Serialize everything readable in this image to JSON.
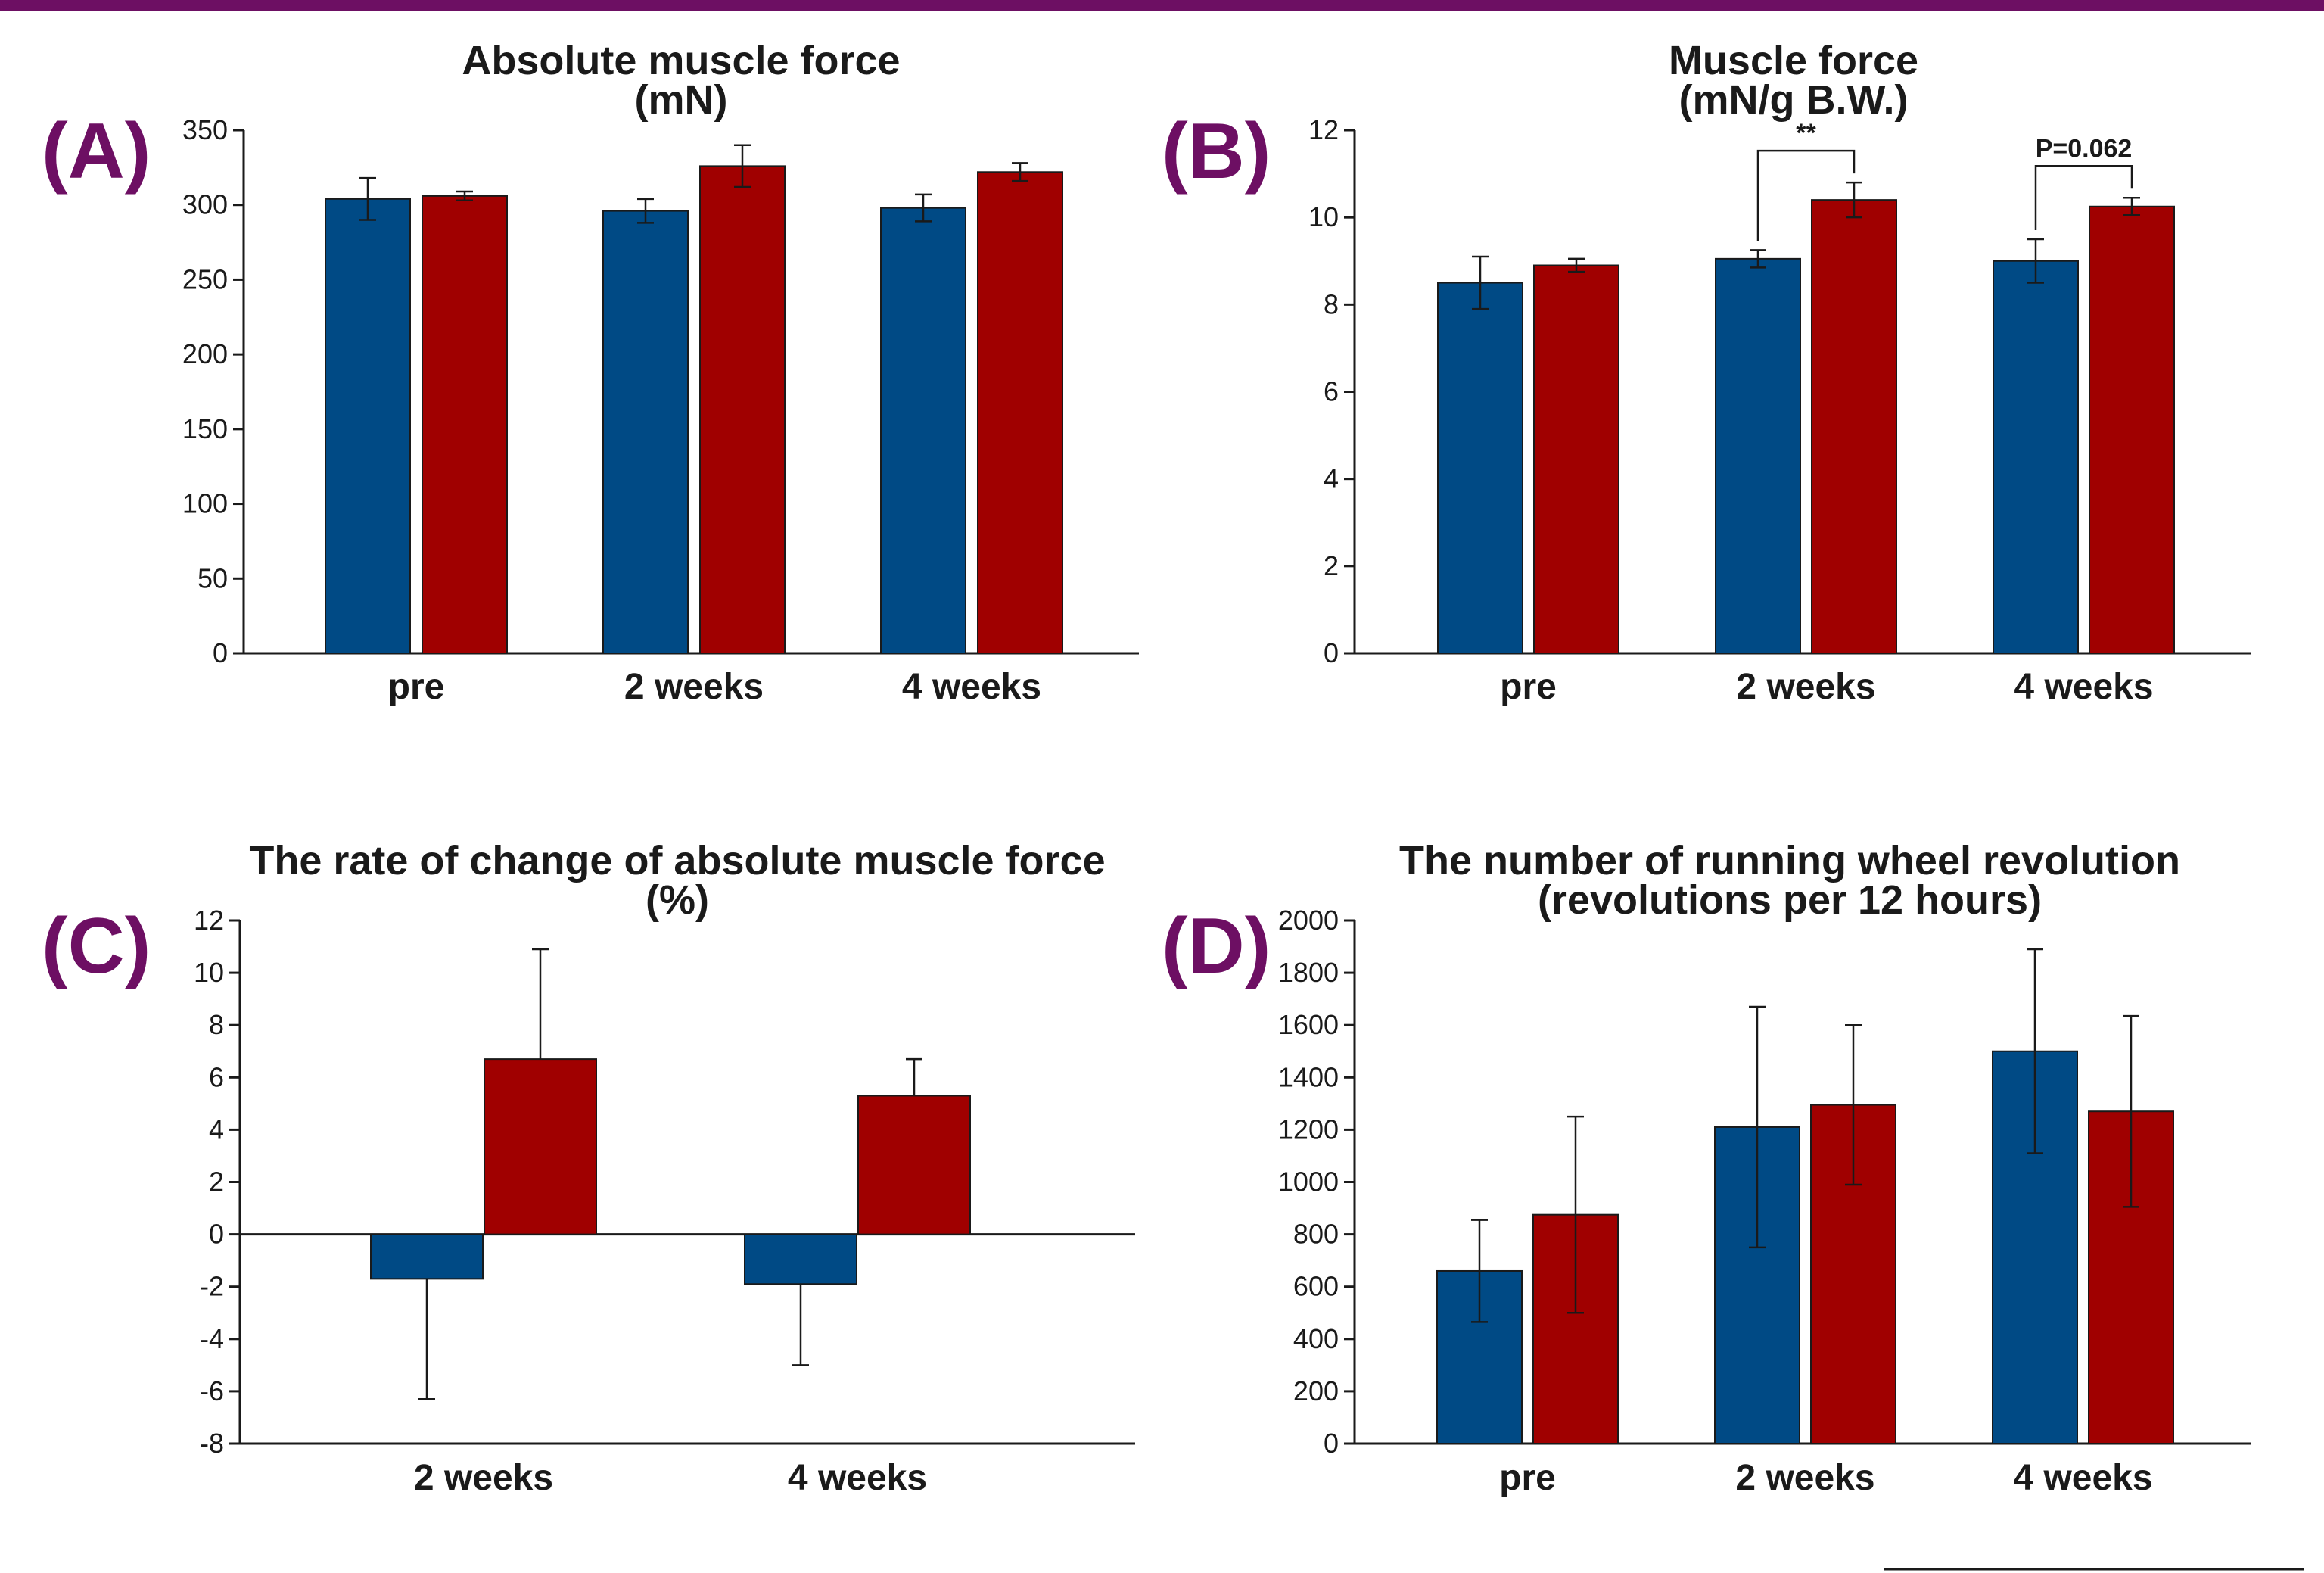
{
  "colors": {
    "series_blue": "#004a85",
    "series_red": "#a00000",
    "accent": "#6d0f63"
  },
  "chart_data": [
    {
      "panel": "(A)",
      "type": "bar",
      "title": "Absolute muscle force",
      "subtitle": "(mN)",
      "categories": [
        "pre",
        "2 weeks",
        "4 weeks"
      ],
      "ylim": [
        0,
        350
      ],
      "yticks": [
        "0",
        "50",
        "100",
        "150",
        "200",
        "250",
        "300",
        "350"
      ],
      "series": [
        {
          "values": [
            304,
            296,
            298
          ],
          "errors": [
            14,
            8,
            9
          ],
          "color": "#004a85"
        },
        {
          "values": [
            306,
            326,
            322
          ],
          "errors": [
            3,
            14,
            6
          ],
          "color": "#a00000"
        }
      ],
      "annotations": []
    },
    {
      "panel": "(B)",
      "type": "bar",
      "title": "Muscle force",
      "subtitle": "(mN/g B.W.)",
      "categories": [
        "pre",
        "2 weeks",
        "4 weeks"
      ],
      "ylim": [
        0,
        12
      ],
      "yticks": [
        "0",
        "2",
        "4",
        "6",
        "8",
        "10",
        "12"
      ],
      "series": [
        {
          "values": [
            8.5,
            9.05,
            9.0
          ],
          "errors": [
            0.6,
            0.2,
            0.5
          ],
          "color": "#004a85"
        },
        {
          "values": [
            8.9,
            10.4,
            10.25
          ],
          "errors": [
            0.15,
            0.4,
            0.2
          ],
          "color": "#a00000"
        }
      ],
      "annotations": [
        {
          "category": "2 weeks",
          "text": "**"
        },
        {
          "category": "4 weeks",
          "text": "P=0.062"
        }
      ]
    },
    {
      "panel": "(C)",
      "type": "bar",
      "title": "The rate of change of absolute muscle force",
      "subtitle": "(%)",
      "categories": [
        "2 weeks",
        "4 weeks"
      ],
      "ylim": [
        -8,
        12
      ],
      "yticks": [
        "-8",
        "-6",
        "-4",
        "-2",
        "0",
        "2",
        "4",
        "6",
        "8",
        "10",
        "12"
      ],
      "series": [
        {
          "values": [
            -1.7,
            -1.9
          ],
          "errors": [
            4.6,
            3.1
          ],
          "color": "#004a85"
        },
        {
          "values": [
            6.7,
            5.3
          ],
          "errors": [
            4.2,
            1.4
          ],
          "color": "#a00000"
        }
      ],
      "annotations": []
    },
    {
      "panel": "(D)",
      "type": "bar",
      "title": "The number of running wheel revolution",
      "subtitle": "(revolutions per 12 hours)",
      "categories": [
        "pre",
        "2 weeks",
        "4 weeks"
      ],
      "ylim": [
        0,
        2000
      ],
      "yticks": [
        "0",
        "200",
        "400",
        "600",
        "800",
        "1000",
        "1200",
        "1400",
        "1600",
        "1800",
        "2000"
      ],
      "series": [
        {
          "values": [
            660,
            1210,
            1500
          ],
          "errors": [
            195,
            460,
            390
          ],
          "color": "#004a85"
        },
        {
          "values": [
            875,
            1295,
            1270
          ],
          "errors": [
            375,
            305,
            365
          ],
          "color": "#a00000"
        }
      ],
      "annotations": []
    }
  ]
}
